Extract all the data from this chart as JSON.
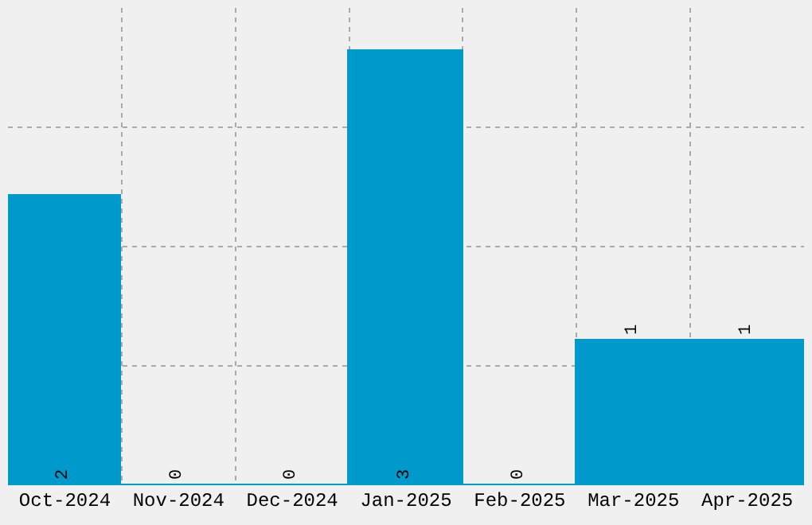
{
  "chart_data": {
    "type": "bar",
    "categories": [
      "Oct-2024",
      "Nov-2024",
      "Dec-2024",
      "Jan-2025",
      "Feb-2025",
      "Mar-2025",
      "Apr-2025"
    ],
    "values": [
      2,
      0,
      0,
      3,
      0,
      1,
      1
    ],
    "color": "#0099cc",
    "data_labels": true,
    "grid": true,
    "tick_labels": "x",
    "ylim": [
      0,
      3.3
    ],
    "yticks": [
      {
        "value": 0.825,
        "label": null
      },
      {
        "value": 1.65,
        "label": null
      },
      {
        "value": 2.475,
        "label": null
      }
    ]
  }
}
